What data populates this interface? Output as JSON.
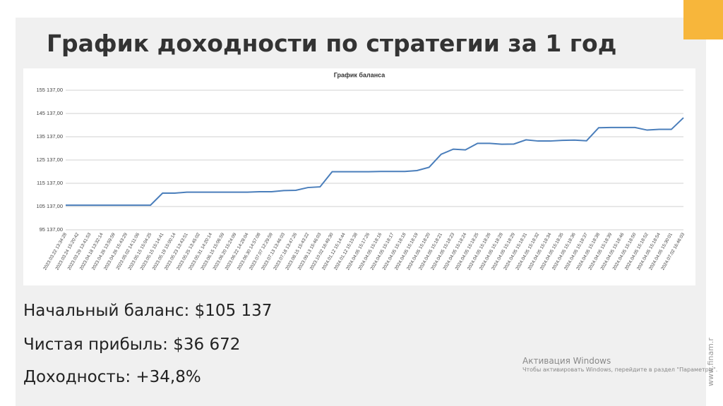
{
  "slide": {
    "title": "График доходности по стратегии за 1 год",
    "stats": [
      "Начальный баланс: $105 137",
      "Чистая прибыль: $36 672",
      "Доходность: +34,8%"
    ],
    "watermark": [
      "Активация Windows",
      "Чтобы активировать Windows, перейдите в раздел \"Параметры\"."
    ],
    "site": "www.finam.r"
  },
  "chart_data": {
    "type": "line",
    "title": "График баланса",
    "categories": [
      "2023.03.22 13:34:28",
      "2023.03.24 15:20:42",
      "2023.03.29 13:41:53",
      "2023.04.18 13:32:14",
      "2023.04.26 13:59:59",
      "2023.04.26 15:43:29",
      "2023.05.02 14:11:06",
      "2023.05.15 15:04:25",
      "2023.05.15 15:14:41",
      "2023.05.19 15:00:14",
      "2023.05.23 13:43:51",
      "2023.05.25 13:45:02",
      "2023.05.31 14:20:14",
      "2023.06.15 15:06:59",
      "2023.06.20 15:24:09",
      "2023.06.22 14:28:04",
      "2023.06.30 14:57:08",
      "2023.07.07 12:29:59",
      "2023.07.13 13:46:03",
      "2023.07.18 13:47:26",
      "2023.08.15 15:43:22",
      "2023.09.13 15:46:03",
      "2023.10.02 16:49:30",
      "2024.01.12 15:14:44",
      "2024.01.12 15:15:38",
      "2024.04.05 15:17:26",
      "2024.04.05 15:18:16",
      "2024.04.05 15:18:17",
      "2024.04.05 15:18:18",
      "2024.04.05 15:18:19",
      "2024.04.05 15:18:20",
      "2024.04.05 15:18:21",
      "2024.04.05 15:18:23",
      "2024.04.05 15:18:24",
      "2024.04.05 15:18:25",
      "2024.04.05 15:18:26",
      "2024.04.05 15:18:28",
      "2024.04.05 15:18:29",
      "2024.04.05 15:18:31",
      "2024.04.05 15:18:32",
      "2024.04.05 15:18:34",
      "2024.04.05 15:18:35",
      "2024.04.05 15:18:36",
      "2024.04.05 15:18:37",
      "2024.04.05 15:18:38",
      "2024.04.05 15:18:39",
      "2024.04.05 15:18:46",
      "2024.04.05 15:18:50",
      "2024.04.05 15:18:52",
      "2024.04.05 15:18:54",
      "2024.04.05 15:30:01",
      "2024.07.02 16:46:03"
    ],
    "values": [
      105700,
      105700,
      105700,
      105700,
      105700,
      105700,
      105700,
      105700,
      110900,
      110900,
      111300,
      111300,
      111300,
      111300,
      111300,
      111300,
      111500,
      111500,
      112000,
      112100,
      113300,
      113600,
      120100,
      120100,
      120100,
      120100,
      120200,
      120200,
      120200,
      120600,
      122000,
      127600,
      129800,
      129500,
      132300,
      132300,
      131900,
      132000,
      133800,
      133300,
      133300,
      133600,
      133700,
      133400,
      139000,
      139100,
      139100,
      139100,
      138000,
      138300,
      138300,
      143300
    ],
    "color": "#4a7ebb",
    "ylim": [
      95137,
      155137
    ],
    "yticks": [
      {
        "value": 95137,
        "label": "95 137,00"
      },
      {
        "value": 105137,
        "label": "105 137,00"
      },
      {
        "value": 115137,
        "label": "115 137,00"
      },
      {
        "value": 125137,
        "label": "125 137,00"
      },
      {
        "value": 135137,
        "label": "135 137,00"
      },
      {
        "value": 145137,
        "label": "145 137,00"
      },
      {
        "value": 155137,
        "label": "155 137,00"
      }
    ],
    "grid": true
  }
}
